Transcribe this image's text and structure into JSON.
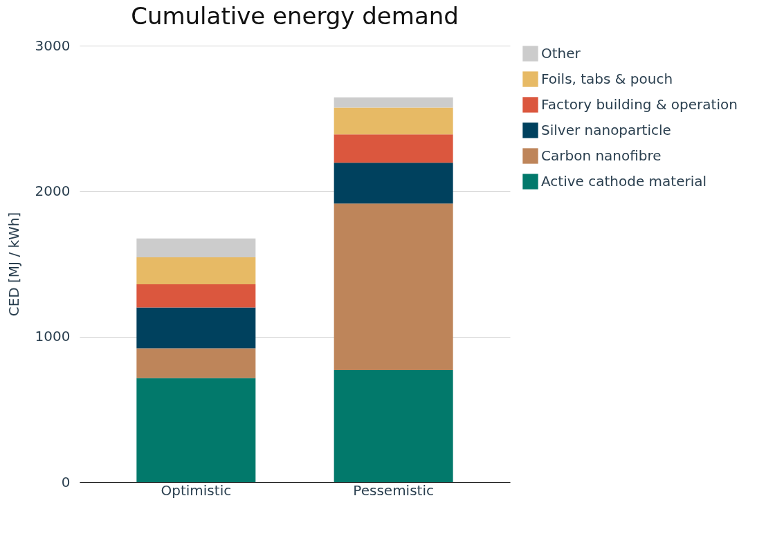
{
  "chart_data": {
    "type": "bar",
    "title": "Cumulative energy demand",
    "ylabel": "CED [MJ / kWh]",
    "categories": [
      "Optimistic",
      "Pessemistic"
    ],
    "stacked": true,
    "series": [
      {
        "name": "Active cathode material",
        "color": "#02796b",
        "values": [
          715,
          770
        ]
      },
      {
        "name": "Carbon nanofibre",
        "color": "#be855a",
        "values": [
          205,
          1145
        ]
      },
      {
        "name": "Silver nanoparticle",
        "color": "#00415e",
        "values": [
          280,
          280
        ]
      },
      {
        "name": "Factory building & operation",
        "color": "#db573e",
        "values": [
          160,
          195
        ]
      },
      {
        "name": "Foils, tabs & pouch",
        "color": "#e7ba65",
        "values": [
          185,
          185
        ]
      },
      {
        "name": "Other",
        "color": "#cccccc",
        "values": [
          130,
          70
        ]
      }
    ],
    "ylim": [
      0,
      3000
    ],
    "yticks": [
      0,
      1000,
      2000,
      3000
    ],
    "grid": "y",
    "legend": "right"
  }
}
